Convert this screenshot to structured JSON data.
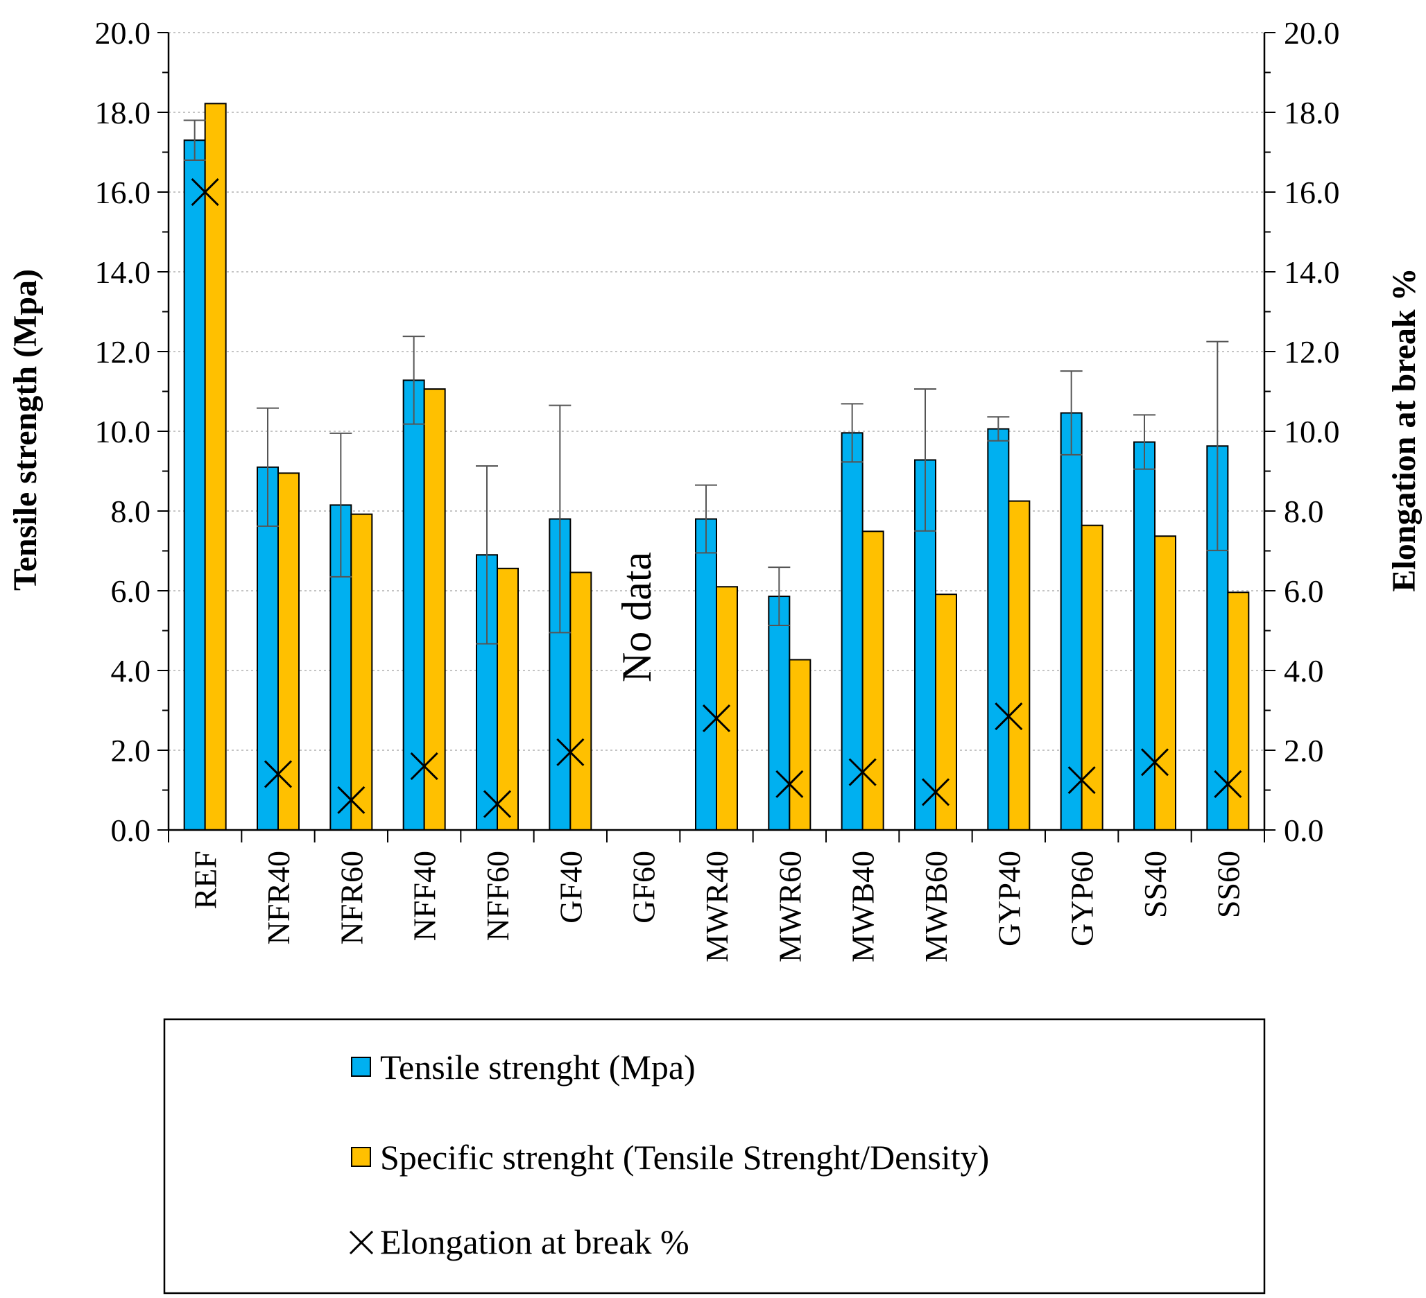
{
  "chart_data": {
    "type": "bar",
    "categories": [
      "REF",
      "NFR40",
      "NFR60",
      "NFF40",
      "NFF60",
      "GF40",
      "GF60",
      "MWR40",
      "MWR60",
      "MWB40",
      "MWB60",
      "GYP40",
      "GYP60",
      "SS40",
      "SS60"
    ],
    "series": [
      {
        "name": "Tensile strenght (Mpa)",
        "kind": "bar",
        "color": "#00B0F0",
        "values": [
          17.3,
          9.1,
          8.15,
          11.28,
          6.9,
          7.8,
          null,
          7.8,
          5.86,
          9.96,
          9.28,
          10.06,
          10.46,
          9.73,
          9.63
        ],
        "error": [
          0.5,
          1.48,
          1.8,
          1.1,
          2.23,
          2.85,
          null,
          0.85,
          0.73,
          0.73,
          1.78,
          0.3,
          1.05,
          0.68,
          2.62
        ]
      },
      {
        "name": "Specific strenght (Tensile Strenght/Density)",
        "kind": "bar",
        "color": "#FFC000",
        "values": [
          18.22,
          8.95,
          7.92,
          11.06,
          6.56,
          6.46,
          null,
          6.1,
          4.27,
          7.49,
          5.91,
          8.25,
          7.64,
          7.37,
          5.96
        ]
      },
      {
        "name": "Elongation at break %",
        "kind": "marker",
        "marker": "x",
        "axis": "right",
        "values": [
          16.0,
          1.4,
          0.75,
          1.6,
          0.65,
          1.95,
          null,
          2.8,
          1.15,
          1.45,
          0.95,
          2.85,
          1.25,
          1.7,
          1.15
        ]
      }
    ],
    "ylabel": "Tensile strength (Mpa)",
    "y2label": "Elongation at break %",
    "ylim": [
      0,
      20
    ],
    "y2lim": [
      0,
      20
    ],
    "yticks": [
      "0.0",
      "2.0",
      "4.0",
      "6.0",
      "8.0",
      "10.0",
      "12.0",
      "14.0",
      "16.0",
      "18.0",
      "20.0"
    ],
    "annotation": "No data",
    "grid": true,
    "legend_position": "bottom"
  }
}
